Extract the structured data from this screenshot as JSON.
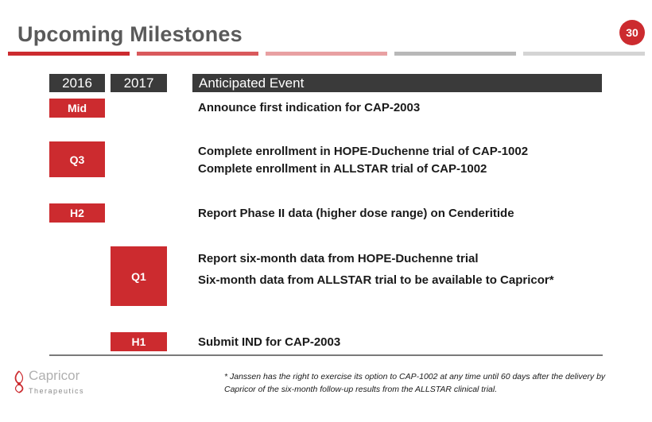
{
  "title": "Upcoming Milestones",
  "page_number": "30",
  "stripe_colors": [
    "#cc2b2f",
    "#d9595c",
    "#e8a0a2",
    "#b8b8b8",
    "#d4d4d4"
  ],
  "table": {
    "headers": {
      "year1": "2016",
      "year2": "2017",
      "event": "Anticipated Event"
    },
    "rows": [
      {
        "tag": "Mid",
        "events": [
          "Announce first indication for CAP-2003"
        ]
      },
      {
        "tag": "Q3",
        "events": [
          "Complete enrollment in HOPE-Duchenne trial of CAP-1002",
          "Complete enrollment in ALLSTAR trial of CAP-1002"
        ]
      },
      {
        "tag": "H2",
        "events": [
          "Report Phase II data (higher dose range) on Cenderitide"
        ]
      },
      {
        "tag": "Q1",
        "events": [
          "Report six-month data from HOPE-Duchenne trial",
          "Six-month data from ALLSTAR trial to be available to Capricor*"
        ]
      },
      {
        "tag": "H1",
        "events": [
          "Submit IND for CAP-2003"
        ]
      }
    ]
  },
  "footnote": "* Janssen has the right to exercise its option to CAP-1002 at any time until 60 days after the delivery by Capricor of the six-month follow-up results from the ALLSTAR clinical trial.",
  "logo": {
    "name": "Capricor",
    "subtitle": "Therapeutics"
  }
}
